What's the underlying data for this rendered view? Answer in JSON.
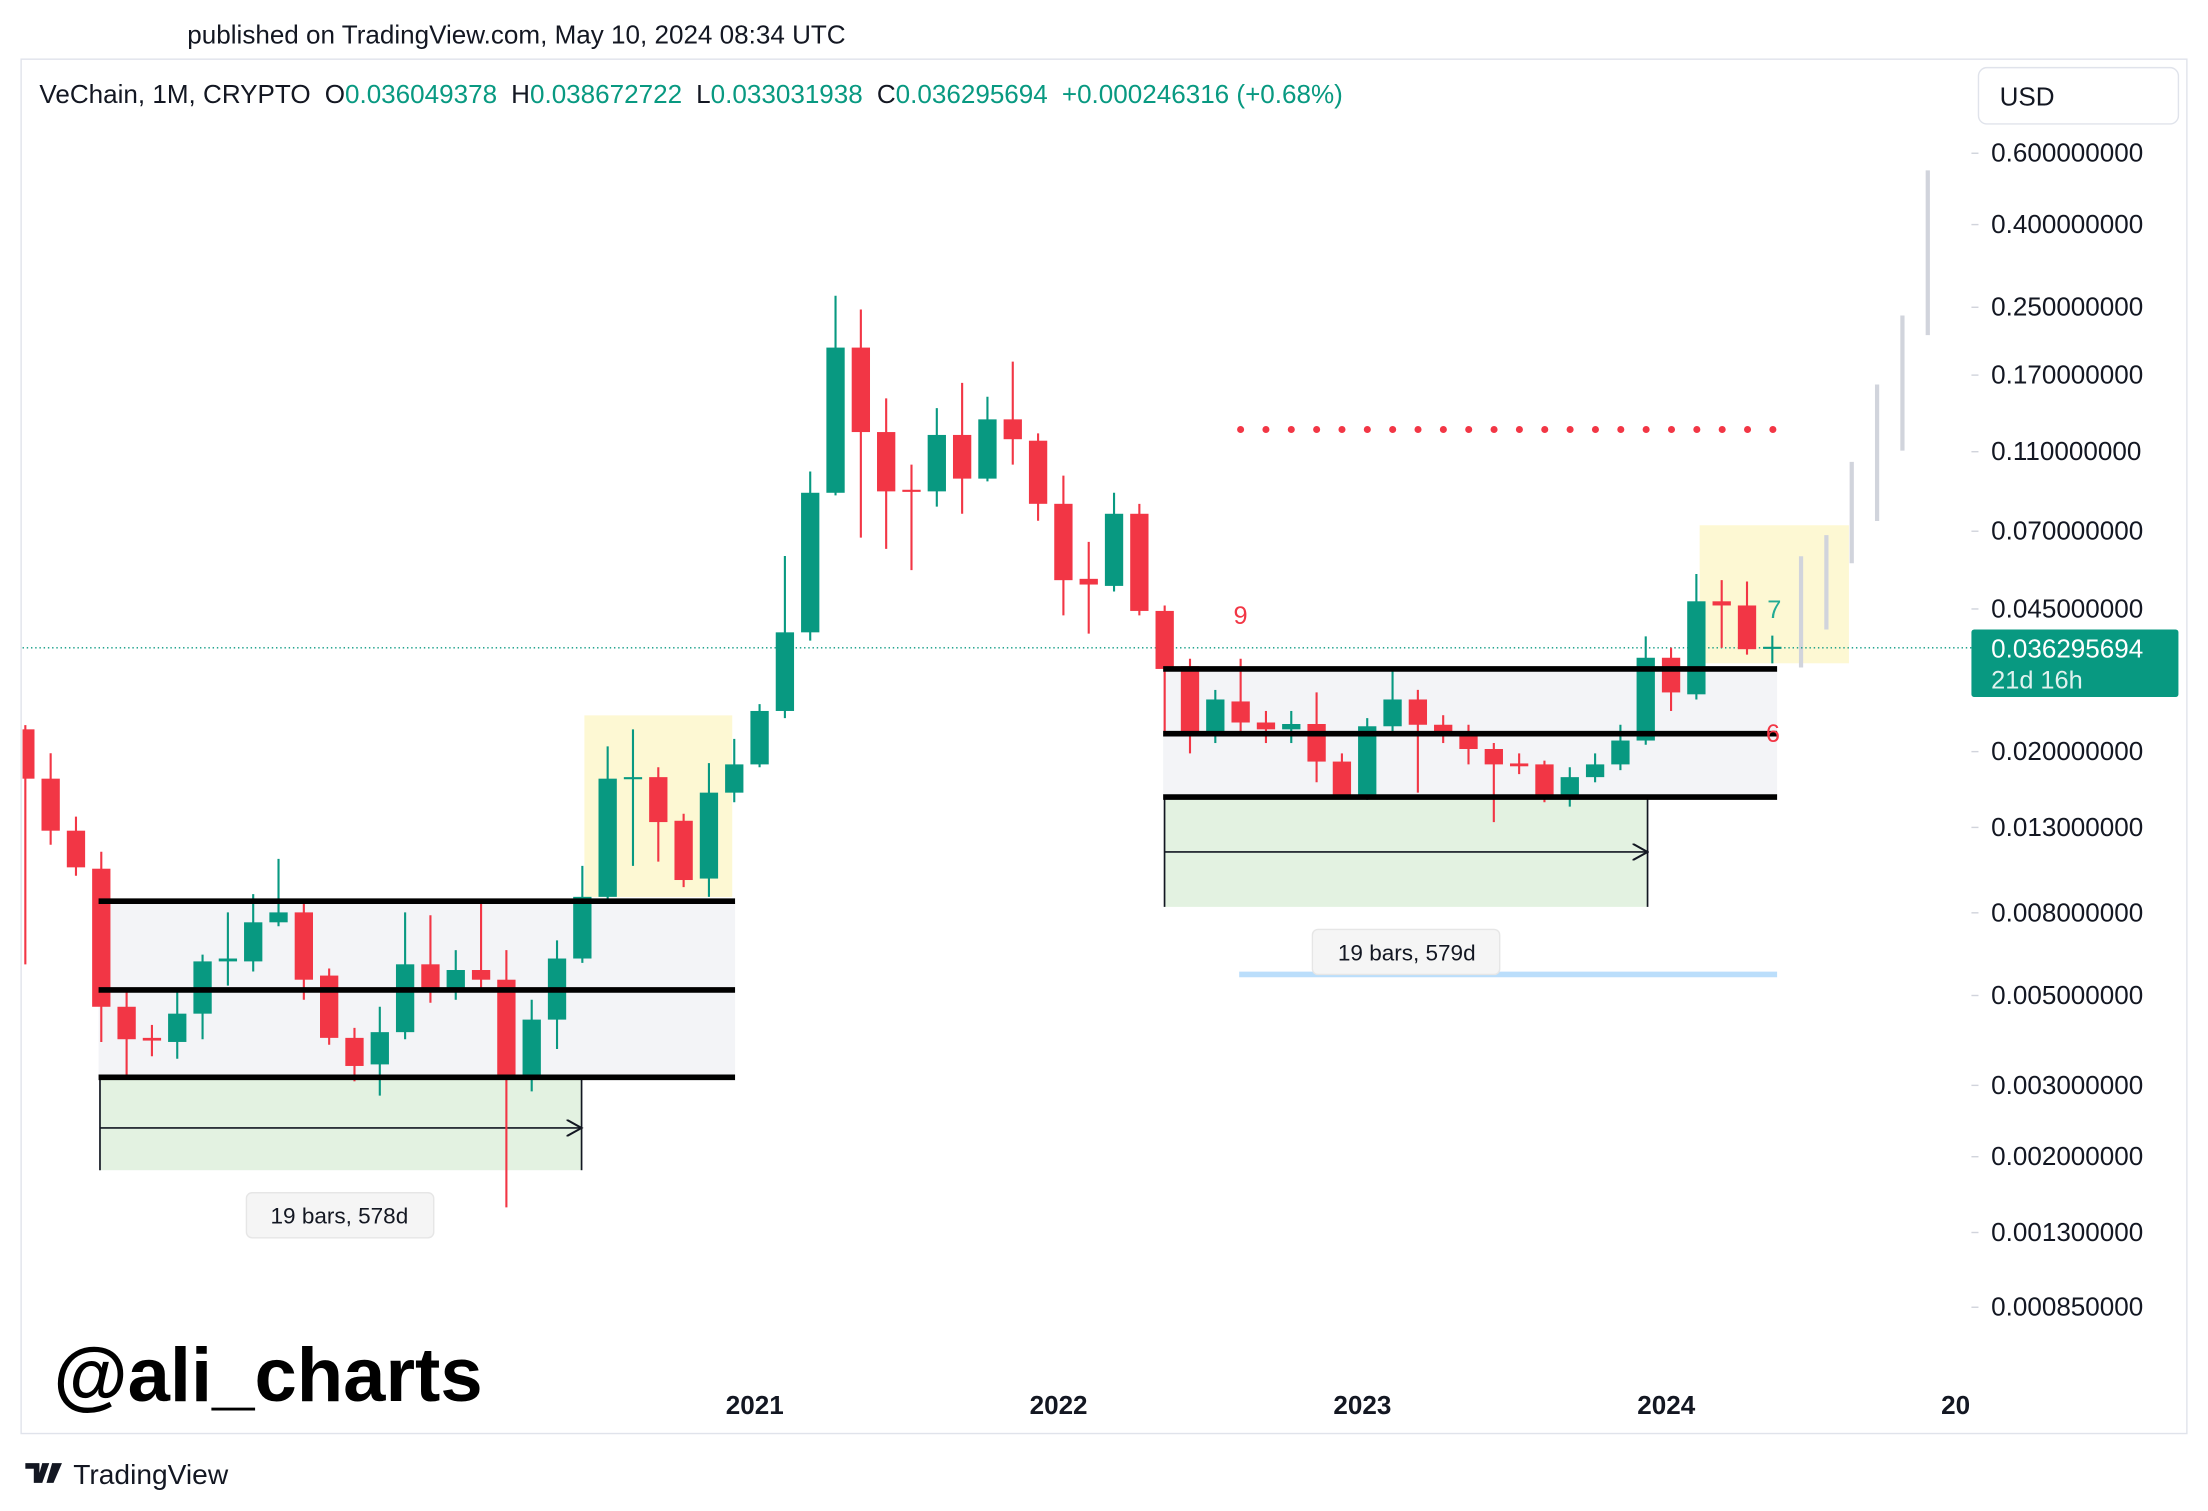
{
  "header": {
    "published": "published on TradingView.com, May 10, 2024 08:34 UTC",
    "brand": "TradingView",
    "watermark": "@ali_charts"
  },
  "chart_data": {
    "type": "candlestick",
    "title": "VeChain, 1M, CRYPTO",
    "ohlc_labels": [
      "O",
      "H",
      "L",
      "C"
    ],
    "change": "+0.000246316 (+0.68%)",
    "currency": "USD",
    "last_price_countdown": "21d 16h",
    "up_color": "#089981",
    "down_color": "#f23645",
    "log_scale": true,
    "categories": [
      null,
      null,
      null,
      null,
      null,
      null,
      null,
      null,
      null,
      null,
      null,
      null,
      null,
      null,
      null,
      null,
      null,
      null,
      null,
      null,
      null,
      null,
      null,
      null,
      null,
      null,
      null,
      null,
      null,
      "2021",
      null,
      null,
      null,
      null,
      null,
      null,
      null,
      null,
      null,
      null,
      null,
      "2022",
      null,
      null,
      null,
      null,
      null,
      null,
      null,
      null,
      null,
      null,
      null,
      "2023",
      null,
      null,
      null,
      null,
      null,
      null,
      null,
      null,
      null,
      null,
      null,
      "2024",
      null,
      null,
      null,
      null,
      null,
      null,
      null,
      null,
      null,
      null,
      null,
      "20"
    ],
    "open": [
      0.0227,
      0.01715,
      0.01276,
      0.01028,
      0.00469,
      0.00393,
      0.00384,
      0.00451,
      0.00607,
      0.00607,
      0.00758,
      0.00802,
      0.0056,
      0.00393,
      0.00338,
      0.00406,
      0.00597,
      0.00521,
      0.00578,
      0.00547,
      0.0031,
      0.00436,
      0.00617,
      0.00876,
      0.01715,
      0.0173,
      0.0135,
      0.00972,
      0.01584,
      0.0186,
      0.0252,
      0.0394,
      0.0871,
      0.1988,
      0.123,
      0.0886,
      0.0878,
      0.121,
      0.0944,
      0.1322,
      0.1171,
      0.0818,
      0.0534,
      0.0513,
      0.0773,
      0.0445,
      0.0325,
      0.0224,
      0.0266,
      0.0236,
      0.0227,
      0.0234,
      0.0189,
      0.0156,
      0.0231,
      0.0269,
      0.0233,
      0.022,
      0.0203,
      0.0187,
      0.0186,
      0.01546,
      0.0173,
      0.0186,
      0.0213,
      0.0341,
      0.0277,
      0.047,
      0.0459,
      0.036049378,
      null,
      null,
      null,
      null,
      null,
      null,
      null,
      null
    ],
    "high": [
      0.02325,
      0.01981,
      0.01382,
      0.01132,
      0.00509,
      0.00423,
      0.00509,
      0.00631,
      0.00802,
      0.0089,
      0.01087,
      0.00855,
      0.00583,
      0.00416,
      0.00469,
      0.00802,
      0.00789,
      0.00647,
      0.00842,
      0.00647,
      0.00488,
      0.00684,
      0.01045,
      0.0206,
      0.0227,
      0.0183,
      0.01405,
      0.01874,
      0.0215,
      0.0262,
      0.0608,
      0.0983,
      0.267,
      0.2468,
      0.149,
      0.1022,
      0.1409,
      0.1627,
      0.1503,
      0.1835,
      0.1221,
      0.096,
      0.0659,
      0.0871,
      0.0818,
      0.0459,
      0.0339,
      0.0284,
      0.0339,
      0.0252,
      0.0252,
      0.028,
      0.0198,
      0.0242,
      0.032,
      0.0284,
      0.0246,
      0.0233,
      0.021,
      0.0198,
      0.019,
      0.0183,
      0.0198,
      0.0233,
      0.0385,
      0.0361,
      0.0549,
      0.053,
      0.0526,
      0.038672722,
      null,
      null,
      null,
      null,
      null,
      null,
      null,
      null
    ],
    "low": [
      0.00597,
      0.01178,
      0.00988,
      0.00384,
      0.00314,
      0.00354,
      0.00349,
      0.0039,
      0.00529,
      0.00573,
      0.00741,
      0.00488,
      0.00378,
      0.00307,
      0.00283,
      0.0039,
      0.0048,
      0.00488,
      0.00521,
      0.0015,
      0.0029,
      0.00369,
      0.00602,
      0.00855,
      0.01045,
      0.0107,
      0.00926,
      0.00876,
      0.015,
      0.0183,
      0.0242,
      0.0376,
      0.0858,
      0.0675,
      0.0633,
      0.0561,
      0.0805,
      0.0773,
      0.0929,
      0.1022,
      0.0743,
      0.0434,
      0.0391,
      0.0497,
      0.0434,
      0.0224,
      0.0198,
      0.021,
      0.022,
      0.021,
      0.021,
      0.0168,
      0.01535,
      0.0152,
      0.0224,
      0.01584,
      0.021,
      0.0186,
      0.0134,
      0.0176,
      0.015,
      0.01463,
      0.0168,
      0.018,
      0.0208,
      0.0252,
      0.0269,
      0.0361,
      0.0347,
      0.033031938,
      null,
      null,
      null,
      null,
      null,
      null,
      null,
      null
    ],
    "close": [
      0.01715,
      0.01276,
      0.01036,
      0.00469,
      0.0039,
      0.00387,
      0.00451,
      0.00607,
      0.00617,
      0.00758,
      0.00802,
      0.00547,
      0.00393,
      0.00335,
      0.00406,
      0.00597,
      0.00517,
      0.00578,
      0.00547,
      0.00312,
      0.00436,
      0.00617,
      0.00876,
      0.01715,
      0.0173,
      0.0134,
      0.00964,
      0.01584,
      0.0186,
      0.0252,
      0.0394,
      0.0871,
      0.1988,
      0.123,
      0.0878,
      0.0878,
      0.121,
      0.0944,
      0.1322,
      0.1181,
      0.0818,
      0.053,
      0.0517,
      0.0773,
      0.0445,
      0.032,
      0.0224,
      0.0269,
      0.0236,
      0.0227,
      0.0234,
      0.0189,
      0.0156,
      0.0231,
      0.0269,
      0.0233,
      0.0218,
      0.0203,
      0.0186,
      0.0184,
      0.01546,
      0.0173,
      0.0186,
      0.0213,
      0.0341,
      0.028,
      0.047,
      0.0459,
      0.0358,
      0.036295694,
      null,
      null,
      null,
      null,
      null,
      null,
      null,
      null
    ],
    "ylim": [
      0.00054,
      1
    ],
    "yticks": [
      {
        "value": 0.6,
        "label": "0.600000000"
      },
      {
        "value": 0.4,
        "label": "0.400000000"
      },
      {
        "value": 0.25,
        "label": "0.250000000"
      },
      {
        "value": 0.17,
        "label": "0.170000000"
      },
      {
        "value": 0.11,
        "label": "0.110000000"
      },
      {
        "value": 0.07,
        "label": "0.070000000"
      },
      {
        "value": 0.045,
        "label": "0.045000000"
      },
      {
        "value": 0.02,
        "label": "0.020000000"
      },
      {
        "value": 0.013,
        "label": "0.013000000"
      },
      {
        "value": 0.008,
        "label": "0.008000000"
      },
      {
        "value": 0.005,
        "label": "0.005000000"
      },
      {
        "value": 0.003,
        "label": "0.003000000"
      },
      {
        "value": 0.002,
        "label": "0.002000000"
      },
      {
        "value": 0.0013,
        "label": "0.001300000"
      },
      {
        "value": 0.00085,
        "label": "0.000850000"
      }
    ],
    "annotations": [
      {
        "text": "19 bars, 578d"
      },
      {
        "text": "19 bars, 579d"
      },
      {
        "text": "9"
      },
      {
        "text": "7"
      },
      {
        "text": "6"
      }
    ]
  }
}
